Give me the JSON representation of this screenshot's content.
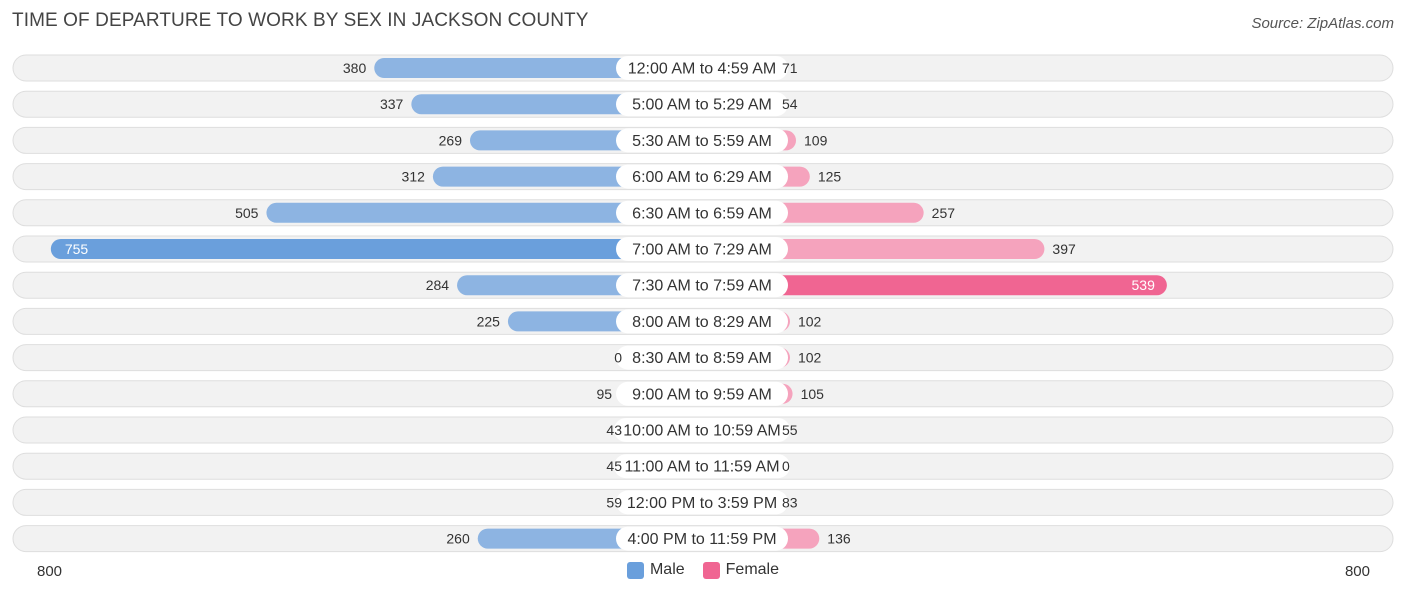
{
  "header": {
    "title": "TIME OF DEPARTURE TO WORK BY SEX IN JACKSON COUNTY",
    "source": "Source: ZipAtlas.com"
  },
  "colors": {
    "male_bar": "#8db4e2",
    "male_highlight": "#6a9fdc",
    "female_bar": "#f5a3bd",
    "female_highlight": "#f06592",
    "row_bg": "#f2f2f2",
    "row_border": "#dedede"
  },
  "legend": {
    "male": "Male",
    "female": "Female"
  },
  "axis": {
    "left_label": "800",
    "right_label": "800"
  },
  "chart_data": {
    "type": "bar",
    "orientation": "horizontal-diverging",
    "title": "TIME OF DEPARTURE TO WORK BY SEX IN JACKSON COUNTY",
    "categories": [
      "12:00 AM to 4:59 AM",
      "5:00 AM to 5:29 AM",
      "5:30 AM to 5:59 AM",
      "6:00 AM to 6:29 AM",
      "6:30 AM to 6:59 AM",
      "7:00 AM to 7:29 AM",
      "7:30 AM to 7:59 AM",
      "8:00 AM to 8:29 AM",
      "8:30 AM to 8:59 AM",
      "9:00 AM to 9:59 AM",
      "10:00 AM to 10:59 AM",
      "11:00 AM to 11:59 AM",
      "12:00 PM to 3:59 PM",
      "4:00 PM to 11:59 PM"
    ],
    "series": [
      {
        "name": "Male",
        "values": [
          380,
          337,
          269,
          312,
          505,
          755,
          284,
          225,
          0,
          95,
          43,
          45,
          59,
          260
        ]
      },
      {
        "name": "Female",
        "values": [
          71,
          54,
          109,
          125,
          257,
          397,
          539,
          102,
          102,
          105,
          55,
          0,
          83,
          136
        ]
      }
    ],
    "xlim": [
      -800,
      800
    ],
    "legend_position": "bottom-center"
  }
}
